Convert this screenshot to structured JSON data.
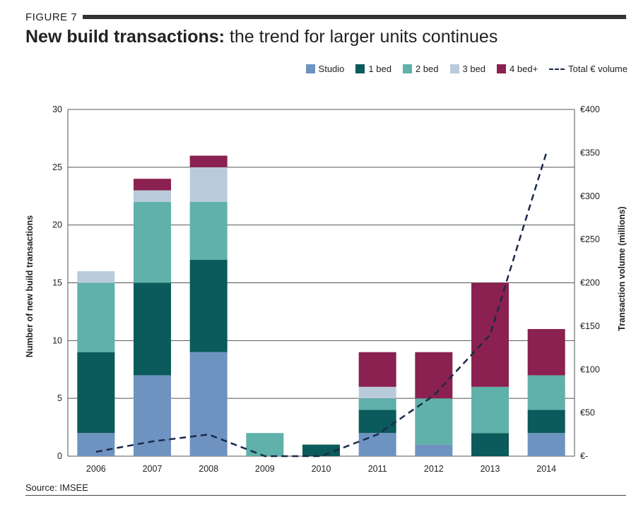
{
  "figure_label": "FIGURE 7",
  "title_bold": "New build transactions:",
  "title_rest": " the trend for larger units continues",
  "source": "Source: IMSEE",
  "chart_data": {
    "type": "bar",
    "stacked": true,
    "categories": [
      "2006",
      "2007",
      "2008",
      "2009",
      "2010",
      "2011",
      "2012",
      "2013",
      "2014"
    ],
    "series": [
      {
        "name": "Studio",
        "color": "#6f93c0",
        "values": [
          2,
          7,
          9,
          0,
          0,
          2,
          1,
          0,
          2
        ]
      },
      {
        "name": "1 bed",
        "color": "#0b5a5c",
        "values": [
          7,
          8,
          8,
          0,
          1,
          2,
          0,
          2,
          2
        ]
      },
      {
        "name": "2 bed",
        "color": "#5fb1a9",
        "values": [
          6,
          7,
          5,
          2,
          0,
          1,
          4,
          4,
          3
        ]
      },
      {
        "name": "3 bed",
        "color": "#b9cbdb",
        "values": [
          1,
          1,
          3,
          0,
          0,
          1,
          0,
          0,
          0
        ]
      },
      {
        "name": "4 bed+",
        "color": "#8a2150",
        "values": [
          0,
          1,
          1,
          0,
          0,
          3,
          4,
          9,
          4
        ]
      }
    ],
    "line": {
      "name": "Total € volume",
      "color": "#1b2a4a",
      "values": [
        5,
        17,
        25,
        0,
        0,
        25,
        70,
        140,
        350
      ]
    },
    "ylabel": "Number of new build transactions",
    "y2label": "Transaction volume (millions)",
    "ylim": [
      0,
      30
    ],
    "y2lim": [
      0,
      400
    ],
    "yticks": [
      0,
      5,
      10,
      15,
      20,
      25,
      30
    ],
    "y2ticks": [
      "€-",
      "€50",
      "€100",
      "€150",
      "€200",
      "€250",
      "€300",
      "€350",
      "€400"
    ],
    "grid": true,
    "legend_position": "top-right"
  }
}
